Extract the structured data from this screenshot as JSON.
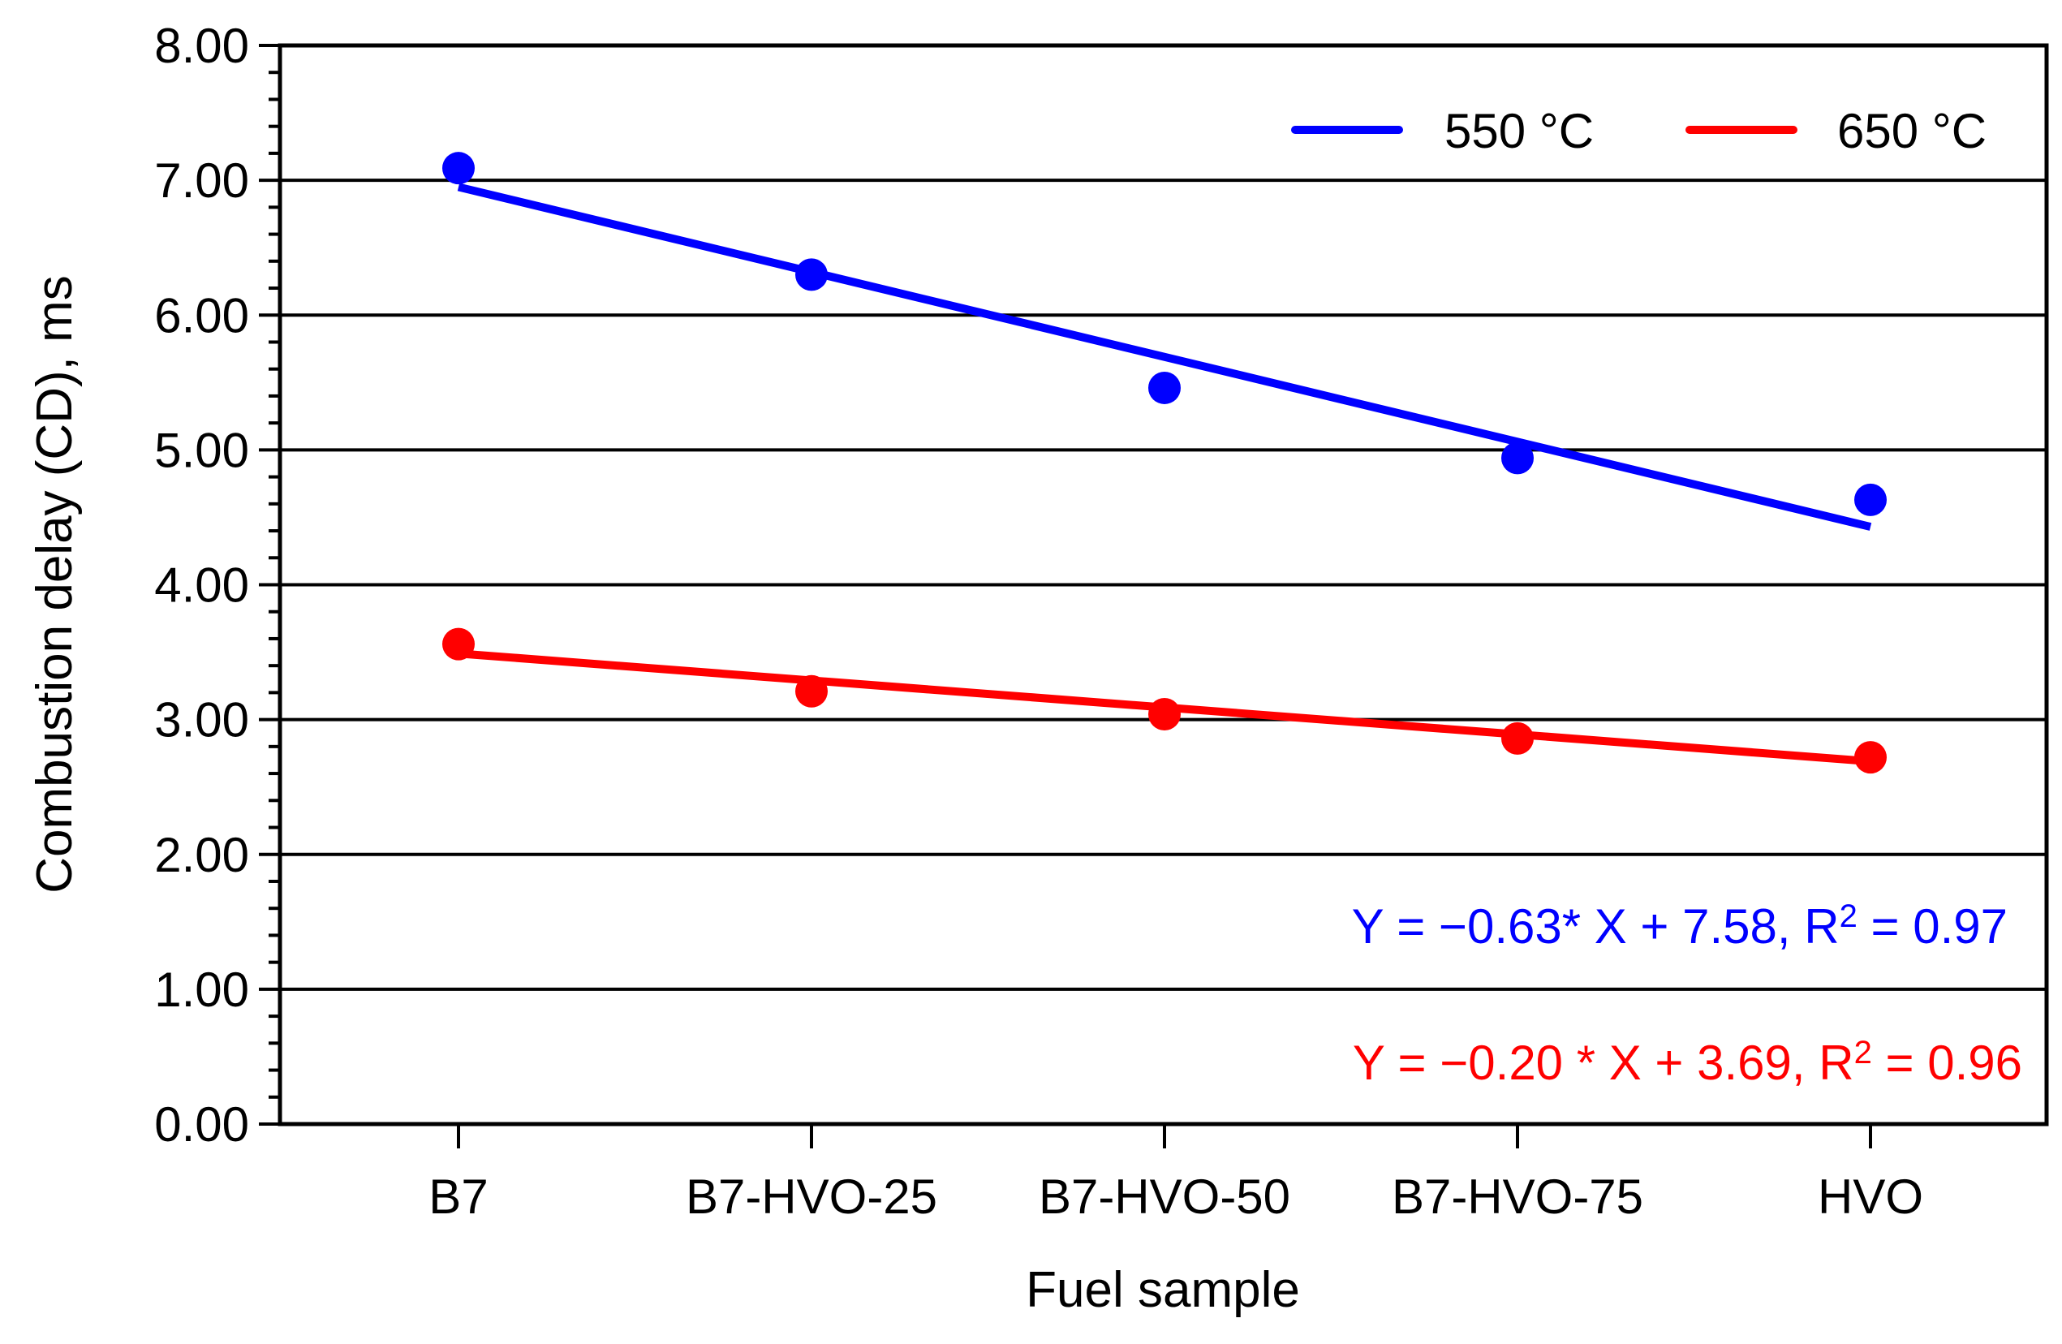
{
  "chart_data": {
    "type": "scatter",
    "title": "",
    "xlabel": "Fuel sample",
    "ylabel": "Combustion delay (CD), ms",
    "categories": [
      "B7",
      "B7-HVO-25",
      "B7-HVO-50",
      "B7-HVO-75",
      "HVO"
    ],
    "ylim": [
      0,
      8
    ],
    "yticks": [
      "0.00",
      "1.00",
      "2.00",
      "3.00",
      "4.00",
      "5.00",
      "6.00",
      "7.00",
      "8.00"
    ],
    "grid": true,
    "legend_position": "top-right",
    "series": [
      {
        "name": "550 °C",
        "color": "#0000ff",
        "values": [
          7.09,
          6.3,
          5.46,
          4.94,
          4.63
        ],
        "trend": {
          "slope": -0.63,
          "intercept": 7.58
        },
        "equation": {
          "prefix": "Y = −0.63* X + 7.58, R",
          "sup": "2",
          "suffix": " = 0.97"
        }
      },
      {
        "name": "650 °C",
        "color": "#ff0000",
        "values": [
          3.56,
          3.21,
          3.04,
          2.86,
          2.72
        ],
        "trend": {
          "slope": -0.2,
          "intercept": 3.69
        },
        "equation": {
          "prefix": "Y = −0.20 * X + 3.69, R",
          "sup": "2",
          "suffix": " = 0.96"
        }
      }
    ]
  }
}
